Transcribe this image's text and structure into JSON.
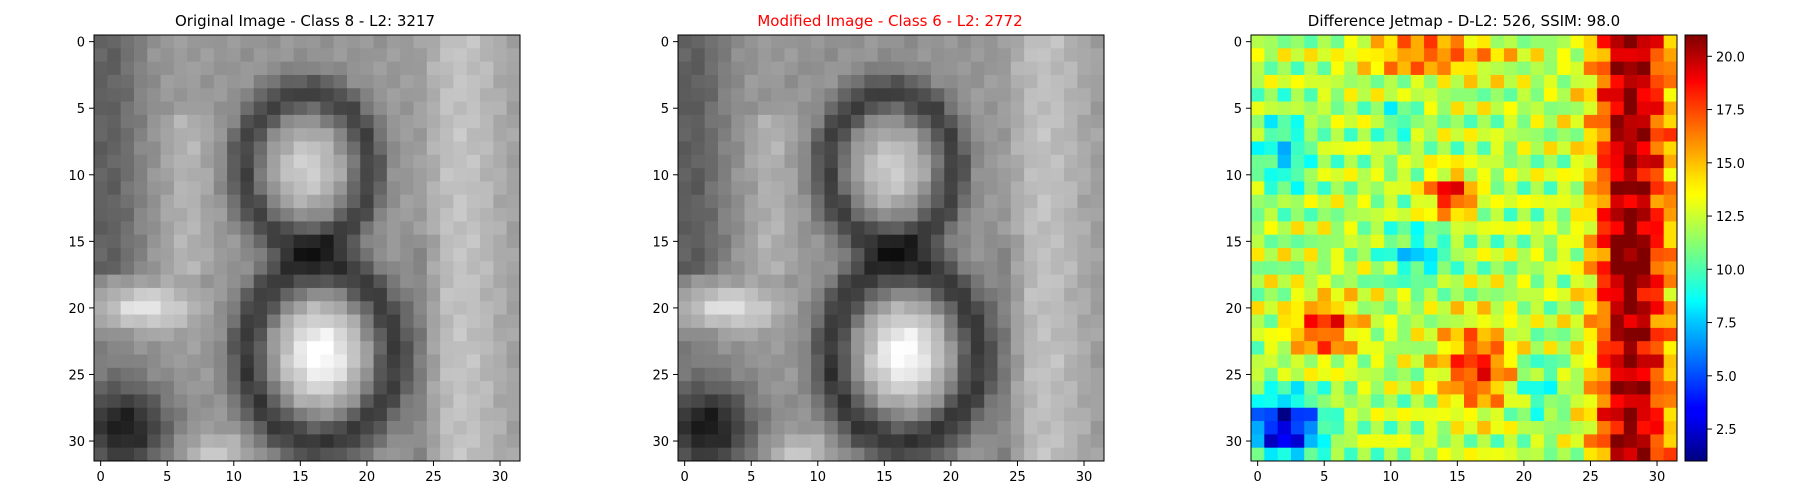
{
  "chart_data": [
    {
      "type": "heatmap",
      "title": "Original Image - Class 8 - L2: 3217",
      "title_color": "#000000",
      "colormap": "gray",
      "grid": false,
      "xlim": [
        -0.5,
        31.5
      ],
      "ylim": [
        31.5,
        -0.5
      ],
      "xticks": [
        0,
        5,
        10,
        15,
        20,
        25,
        30
      ],
      "yticks": [
        0,
        5,
        10,
        15,
        20,
        25,
        30
      ],
      "description": "32x32 grayscale image of digit 8; two lighter circular regions (rows 8-11 and rows 21-27 near columns 13-20) enclosed by dark rings; bright blob at left around rows 19-21, dark region bottom-left rows 25-31"
    },
    {
      "type": "heatmap",
      "title": "Modified Image - Class 6 - L2: 2772",
      "title_color": "#ff0000",
      "colormap": "gray",
      "grid": false,
      "xlim": [
        -0.5,
        31.5
      ],
      "ylim": [
        31.5,
        -0.5
      ],
      "xticks": [
        0,
        5,
        10,
        15,
        20,
        25,
        30
      ],
      "yticks": [
        0,
        5,
        10,
        15,
        20,
        25,
        30
      ]
    },
    {
      "type": "heatmap",
      "title": "Difference Jetmap - D-L2: 526, SSIM: 98.0",
      "title_color": "#000000",
      "colormap": "jet",
      "grid": false,
      "xlim": [
        -0.5,
        31.5
      ],
      "ylim": [
        31.5,
        -0.5
      ],
      "xticks": [
        0,
        5,
        10,
        15,
        20,
        25,
        30
      ],
      "yticks": [
        0,
        5,
        10,
        15,
        20,
        25,
        30
      ],
      "colorbar": {
        "range": [
          1,
          21
        ],
        "ticks": [
          "2.5",
          "5.0",
          "7.5",
          "10.0",
          "12.5",
          "15.0",
          "17.5",
          "20.0"
        ]
      }
    }
  ]
}
